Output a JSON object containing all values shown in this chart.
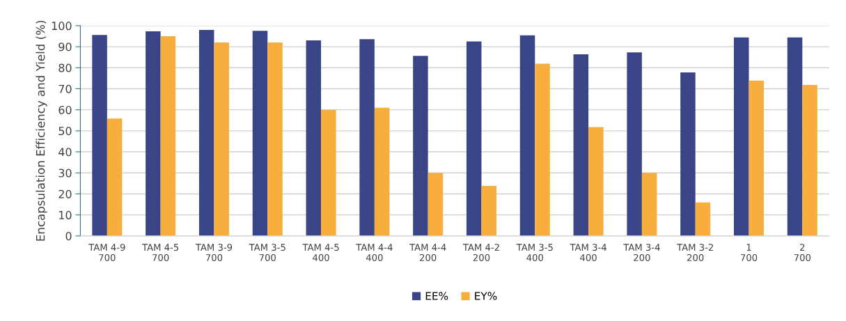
{
  "chart_data": {
    "type": "bar",
    "ylabel": "Encapsulation Efficiency and Yield (%)",
    "categories": [
      "TAM 4-9\n700",
      "TAM 4-5\n700",
      "TAM 3-9\n700",
      "TAM 3-5\n700",
      "TAM 4-5\n400",
      "TAM 4-4\n400",
      "TAM 4-4\n200",
      "TAM 4-2\n200",
      "TAM 3-5\n400",
      "TAM 3-4\n400",
      "TAM 3-4\n200",
      "TAM 3-2\n200",
      "1\n700",
      "2\n700"
    ],
    "series": [
      {
        "name": "EE%",
        "color": "#3a4587",
        "values": [
          95.6,
          97.3,
          98,
          97.6,
          93,
          93.6,
          85.6,
          92.5,
          95.4,
          86.4,
          87.3,
          77.8,
          94.4,
          94.4
        ]
      },
      {
        "name": "EY%",
        "color": "#f8ae3c",
        "values": [
          55.8,
          95,
          92,
          92,
          60,
          61,
          30,
          23.8,
          81.9,
          51.8,
          30,
          15.9,
          73.9,
          71.8
        ]
      }
    ],
    "ylim": [
      0,
      100
    ],
    "yticks": [
      0,
      10,
      20,
      30,
      40,
      50,
      60,
      70,
      80,
      90,
      100
    ],
    "grid": "y",
    "legend": "bottom"
  }
}
